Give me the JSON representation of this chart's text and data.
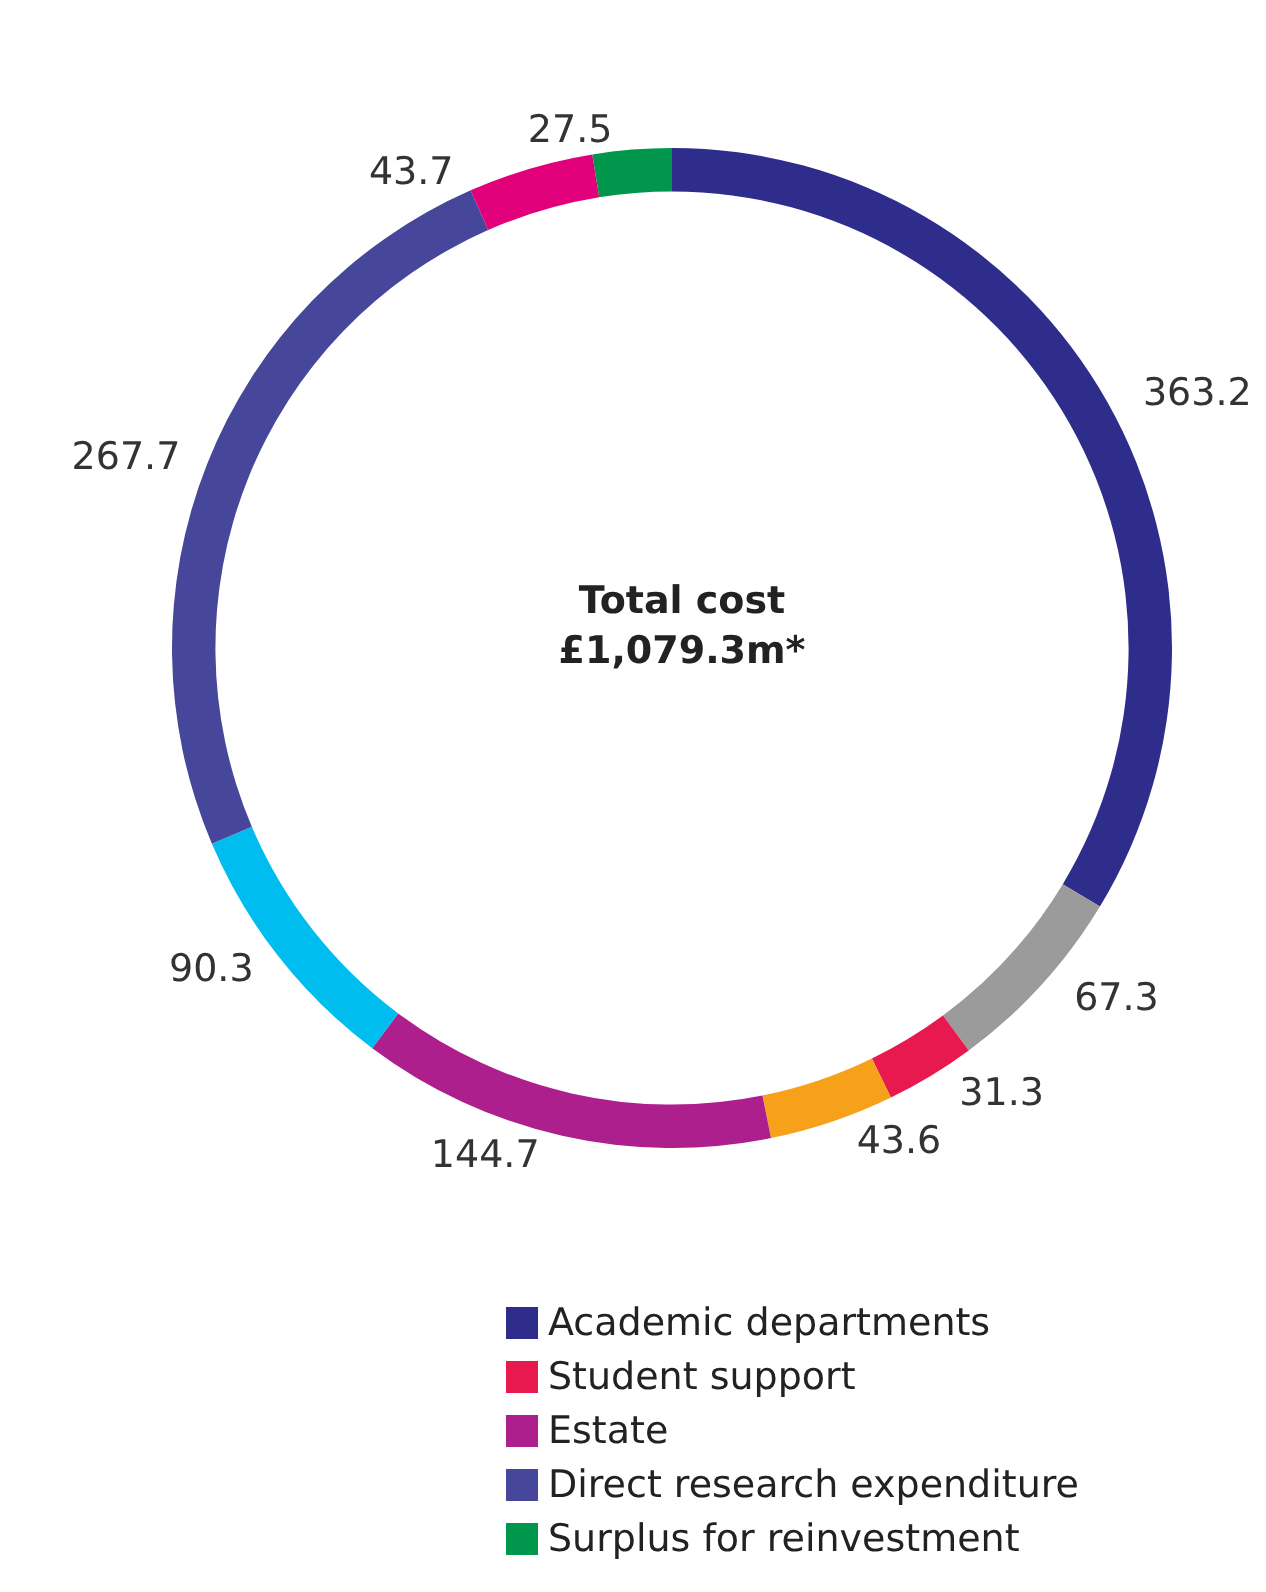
{
  "chart_data": {
    "type": "donut",
    "title": "Total cost",
    "subtitle": "£1,079.3m*",
    "categories": [
      "Academic departments",
      null,
      "Student support",
      null,
      "Estate",
      null,
      "Direct research expenditure",
      null,
      "Surplus for reinvestment"
    ],
    "values": [
      363.2,
      67.3,
      31.3,
      43.6,
      144.7,
      90.3,
      267.7,
      43.7,
      27.5
    ],
    "colors": [
      "#2e2d8c",
      "#9b9b9b",
      "#e8194f",
      "#f7a11a",
      "#ad1f8c",
      "#00bdf0",
      "#46469a",
      "#e2007a",
      "#00964b"
    ],
    "data_labels": true,
    "legend": "bottom"
  }
}
